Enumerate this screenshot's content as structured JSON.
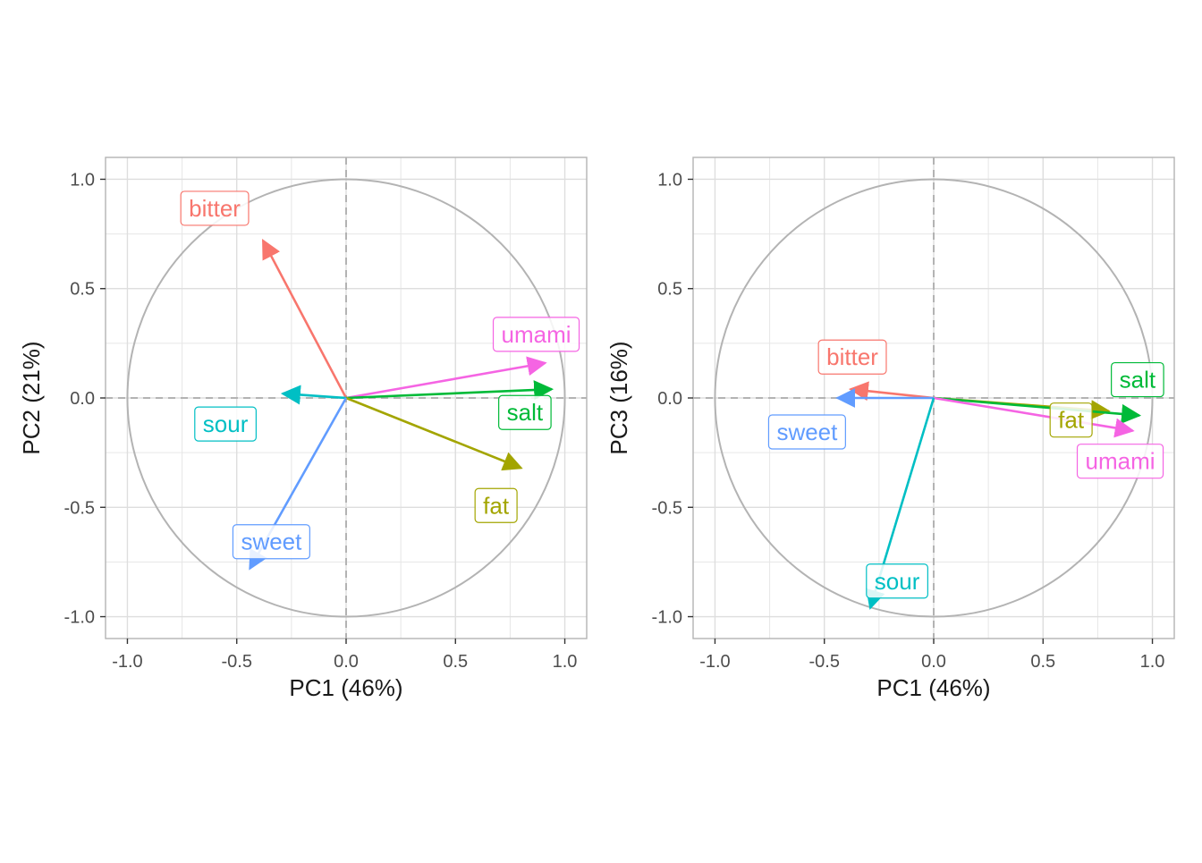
{
  "colors": {
    "bitter": "#F8766D",
    "fat": "#A3A500",
    "salt": "#00BA38",
    "sour": "#00BFC4",
    "sweet": "#619CFF",
    "umami": "#F564E3",
    "circle": "#b3b3b3",
    "grid": "#e6e6e6",
    "panel_border": "#b3b3b3",
    "zero_line": "#b3b3b3"
  },
  "chart_data": [
    {
      "type": "scatter",
      "subtype": "pca-correlation-circle",
      "title": "",
      "xlabel": "PC1 (46%)",
      "ylabel": "PC2 (21%)",
      "xlim": [
        -1.1,
        1.1
      ],
      "ylim": [
        -1.1,
        1.1
      ],
      "xticks": [
        -1.0,
        -0.5,
        0.0,
        0.5,
        1.0
      ],
      "yticks": [
        -1.0,
        -0.5,
        0.0,
        0.5,
        1.0
      ],
      "xtick_labels": [
        "-1.0",
        "-0.5",
        "0.0",
        "0.5",
        "1.0"
      ],
      "ytick_labels": [
        "-1.0",
        "-0.5",
        "0.0",
        "0.5",
        "1.0"
      ],
      "grid": true,
      "unit_circle": true,
      "series": [
        {
          "name": "bitter",
          "x": -0.38,
          "y": 0.72
        },
        {
          "name": "umami",
          "x": 0.91,
          "y": 0.16
        },
        {
          "name": "salt",
          "x": 0.94,
          "y": 0.04
        },
        {
          "name": "sour",
          "x": -0.29,
          "y": 0.02
        },
        {
          "name": "fat",
          "x": 0.8,
          "y": -0.32
        },
        {
          "name": "sweet",
          "x": -0.44,
          "y": -0.78
        }
      ]
    },
    {
      "type": "scatter",
      "subtype": "pca-correlation-circle",
      "title": "",
      "xlabel": "PC1 (46%)",
      "ylabel": "PC3 (16%)",
      "xlim": [
        -1.1,
        1.1
      ],
      "ylim": [
        -1.1,
        1.1
      ],
      "xticks": [
        -1.0,
        -0.5,
        0.0,
        0.5,
        1.0
      ],
      "yticks": [
        -1.0,
        -0.5,
        0.0,
        0.5,
        1.0
      ],
      "xtick_labels": [
        "-1.0",
        "-0.5",
        "0.0",
        "0.5",
        "1.0"
      ],
      "ytick_labels": [
        "-1.0",
        "-0.5",
        "0.0",
        "0.5",
        "1.0"
      ],
      "grid": true,
      "unit_circle": true,
      "series": [
        {
          "name": "bitter",
          "x": -0.38,
          "y": 0.04
        },
        {
          "name": "sweet",
          "x": -0.44,
          "y": 0.0
        },
        {
          "name": "fat",
          "x": 0.8,
          "y": -0.06
        },
        {
          "name": "salt",
          "x": 0.94,
          "y": -0.08
        },
        {
          "name": "umami",
          "x": 0.91,
          "y": -0.15
        },
        {
          "name": "sour",
          "x": -0.29,
          "y": -0.96
        }
      ]
    }
  ]
}
